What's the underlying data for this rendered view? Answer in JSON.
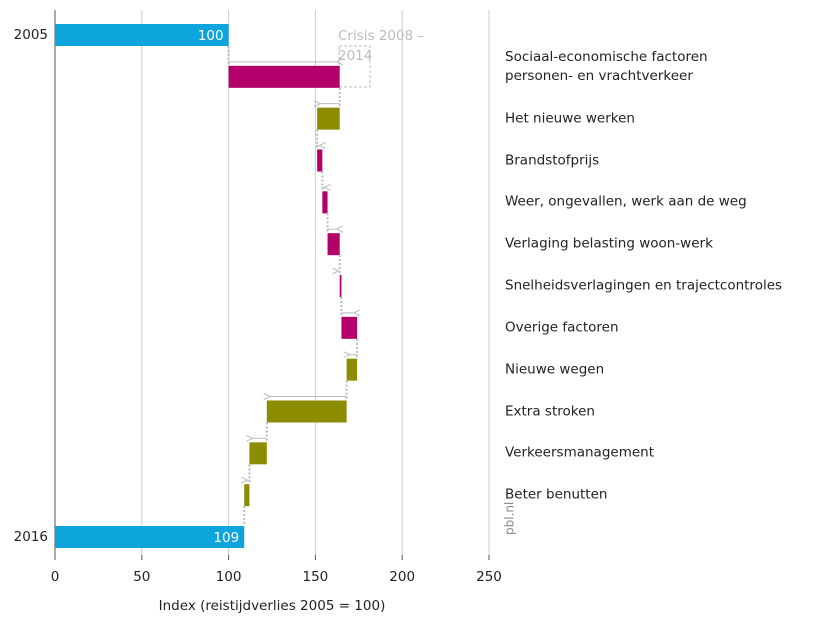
{
  "chart_data": {
    "type": "waterfall",
    "xlabel": "Index (reistijdverlies 2005 = 100)",
    "start": {
      "label": "2005",
      "value": 100
    },
    "steps": [
      {
        "name": "Sociaal-economische factoren personen- en vrachtverkeer",
        "value": 64
      },
      {
        "name": "Het nieuwe werken",
        "value": -13
      },
      {
        "name": "Brandstofprijs",
        "value": 3
      },
      {
        "name": "Weer, ongevallen, werk aan de weg",
        "value": 3
      },
      {
        "name": "Verlaging belasting woon-werk",
        "value": 7
      },
      {
        "name": "Snelheidsverlagingen en trajectcontroles",
        "value": 1
      },
      {
        "name": "Overige factoren",
        "value": 9
      },
      {
        "name": "Nieuwe wegen",
        "value": -6
      },
      {
        "name": "Extra stroken",
        "value": -46
      },
      {
        "name": "Verkeersmanagement",
        "value": -10
      },
      {
        "name": "Beter benutten",
        "value": -3
      }
    ],
    "end": {
      "label": "2016",
      "value": 109
    },
    "annotation": "Crisis 2008 – 2014",
    "source": "pbl.nl",
    "xlim": [
      0,
      250
    ],
    "xticks": [
      0,
      50,
      100,
      150,
      200,
      250
    ],
    "grid": true,
    "colors": {
      "total": "#0ea5dd",
      "increase": "#b3006b",
      "decrease": "#8c8c00"
    }
  }
}
